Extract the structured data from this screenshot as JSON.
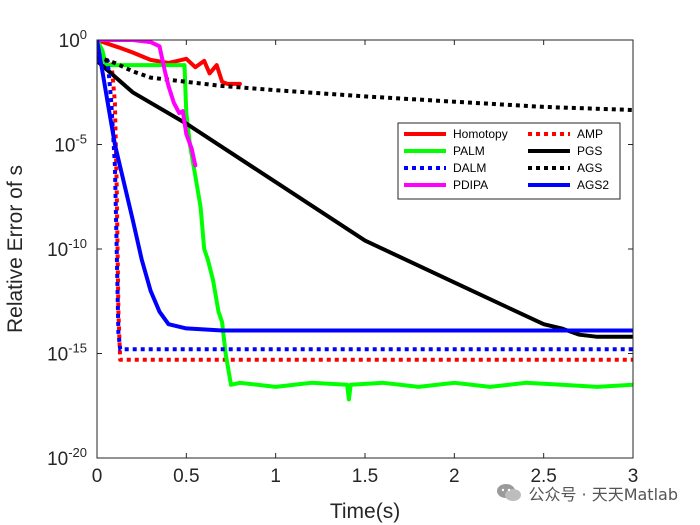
{
  "chart_data": {
    "type": "line",
    "xlabel": "Time(s)",
    "ylabel": "Relative Error of s",
    "xlim": [
      0,
      3
    ],
    "ylim_log10": [
      -20,
      0
    ],
    "y_scale": "log",
    "xticks": [
      {
        "value": 0,
        "label": "0"
      },
      {
        "value": 0.5,
        "label": "0.5"
      },
      {
        "value": 1,
        "label": "1"
      },
      {
        "value": 1.5,
        "label": "1.5"
      },
      {
        "value": 2,
        "label": "2"
      },
      {
        "value": 2.5,
        "label": "2.5"
      },
      {
        "value": 3,
        "label": "3"
      }
    ],
    "yticks": [
      {
        "log10": 0,
        "base": "10",
        "exp": "0"
      },
      {
        "log10": -5,
        "base": "10",
        "exp": "-5"
      },
      {
        "log10": -10,
        "base": "10",
        "exp": "-10"
      },
      {
        "log10": -15,
        "base": "10",
        "exp": "-15"
      },
      {
        "log10": -20,
        "base": "10",
        "exp": "-20"
      }
    ],
    "legend_position": "top-right",
    "legend_order": [
      "Homotopy",
      "AMP",
      "PALM",
      "PGS",
      "DALM",
      "AGS",
      "PDIPA",
      "AGS2"
    ],
    "series": [
      {
        "name": "Homotopy",
        "color": "#ff0000",
        "dash": "solid",
        "x": [
          0,
          0.05,
          0.12,
          0.2,
          0.3,
          0.4,
          0.45,
          0.5,
          0.55,
          0.6,
          0.63,
          0.67,
          0.7,
          0.73,
          0.8
        ],
        "log10": [
          0,
          -0.15,
          -0.35,
          -0.6,
          -0.95,
          -1.1,
          -1.0,
          -0.9,
          -1.3,
          -1.0,
          -1.6,
          -1.2,
          -2.0,
          -2.1,
          -2.1
        ]
      },
      {
        "name": "AMP",
        "color": "#ff0000",
        "dash": "dotted",
        "x": [
          0,
          0.08,
          0.1,
          0.11,
          0.12,
          0.13,
          0.16,
          0.2,
          0.3,
          0.5,
          1.0,
          1.5,
          2.0,
          2.5,
          3.0
        ],
        "log10": [
          -1.0,
          -1.0,
          -3.0,
          -7.0,
          -13.0,
          -15.3,
          -15.3,
          -15.3,
          -15.3,
          -15.3,
          -15.3,
          -15.3,
          -15.3,
          -15.3,
          -15.3
        ]
      },
      {
        "name": "PALM",
        "color": "#00ff00",
        "dash": "solid",
        "x": [
          0,
          0.03,
          0.05,
          0.1,
          0.3,
          0.49,
          0.5,
          0.52,
          0.55,
          0.58,
          0.6,
          0.62,
          0.65,
          0.68,
          0.7,
          0.72,
          0.75,
          0.8,
          1.0,
          1.2,
          1.4,
          1.41,
          1.42,
          1.6,
          1.8,
          2.0,
          2.2,
          2.4,
          2.6,
          2.8,
          3.0
        ],
        "log10": [
          0,
          -0.5,
          -1.2,
          -1.2,
          -1.2,
          -1.2,
          -3.5,
          -5.0,
          -6.5,
          -8.0,
          -10.0,
          -10.5,
          -11.5,
          -13.0,
          -13.5,
          -15.0,
          -16.5,
          -16.4,
          -16.6,
          -16.4,
          -16.5,
          -17.2,
          -16.5,
          -16.4,
          -16.6,
          -16.4,
          -16.6,
          -16.4,
          -16.5,
          -16.6,
          -16.5
        ]
      },
      {
        "name": "PGS",
        "color": "#000000",
        "dash": "solid",
        "x": [
          0,
          0.2,
          0.5,
          1.0,
          1.5,
          2.0,
          2.3,
          2.5,
          2.6,
          2.7,
          2.8,
          3.0
        ],
        "log10": [
          -1.0,
          -2.5,
          -4.0,
          -6.8,
          -9.6,
          -11.6,
          -12.8,
          -13.6,
          -13.8,
          -14.1,
          -14.2,
          -14.2
        ]
      },
      {
        "name": "DALM",
        "color": "#0000ff",
        "dash": "dotted",
        "x": [
          0,
          0.06,
          0.08,
          0.1,
          0.11,
          0.12,
          0.13,
          0.2,
          0.5,
          1.0,
          1.5,
          2.0,
          2.5,
          3.0
        ],
        "log10": [
          -1.0,
          -1.0,
          -3.0,
          -6.0,
          -10.0,
          -14.0,
          -14.8,
          -14.8,
          -14.8,
          -14.8,
          -14.8,
          -14.8,
          -14.8,
          -14.8
        ]
      },
      {
        "name": "AGS",
        "color": "#000000",
        "dash": "dotted",
        "x": [
          0,
          0.1,
          0.2,
          0.3,
          0.5,
          0.7,
          1.0,
          1.5,
          2.0,
          2.5,
          3.0
        ],
        "log10": [
          -0.8,
          -1.1,
          -1.5,
          -1.8,
          -2.0,
          -2.2,
          -2.4,
          -2.7,
          -2.95,
          -3.2,
          -3.35
        ]
      },
      {
        "name": "PDIPA",
        "color": "#ff00ff",
        "dash": "solid",
        "x": [
          0,
          0.1,
          0.2,
          0.3,
          0.35,
          0.38,
          0.4,
          0.43,
          0.46,
          0.48,
          0.5,
          0.53,
          0.55
        ],
        "log10": [
          0,
          0,
          0,
          -0.1,
          -0.3,
          -1.5,
          -2.2,
          -3.0,
          -3.5,
          -3.4,
          -4.5,
          -5.2,
          -6.0
        ]
      },
      {
        "name": "AGS2",
        "color": "#0000ff",
        "dash": "solid",
        "x": [
          0,
          0.03,
          0.06,
          0.1,
          0.15,
          0.2,
          0.25,
          0.3,
          0.35,
          0.4,
          0.5,
          0.7,
          1.0,
          2.0,
          3.0
        ],
        "log10": [
          0,
          -1.5,
          -3.0,
          -5.0,
          -6.8,
          -8.6,
          -10.5,
          -12.0,
          -13.0,
          -13.6,
          -13.8,
          -13.9,
          -13.9,
          -13.9,
          -13.9
        ]
      }
    ]
  },
  "watermark": {
    "text": "公众号 · 天天Matlab",
    "icon": "wechat-icon"
  }
}
